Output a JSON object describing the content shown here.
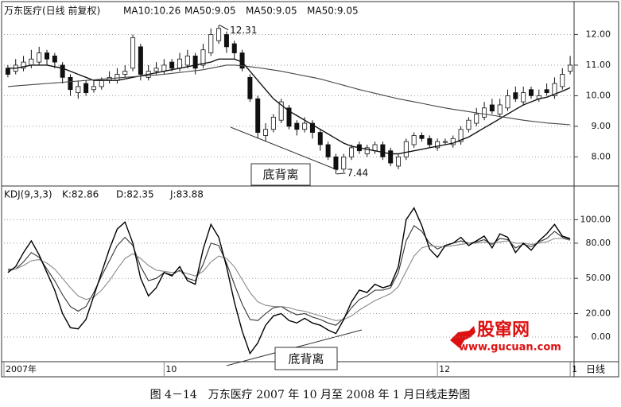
{
  "chart_data": [
    {
      "type": "candlestick",
      "title": "万东医疗(日线 前复权)",
      "open": [
        10.9,
        10.8,
        10.9,
        11.0,
        11.1,
        11.4,
        11.3,
        11.0,
        10.6,
        10.1,
        10.4,
        10.2,
        10.3,
        10.5,
        10.5,
        10.7,
        10.9,
        11.6,
        10.6,
        10.8,
        10.8,
        11.1,
        10.9,
        11.0,
        11.3,
        11.0,
        11.4,
        11.8,
        12.0,
        11.7,
        11.4,
        10.6,
        9.9,
        8.7,
        8.9,
        9.2,
        9.6,
        9.1,
        8.9,
        9.1,
        8.8,
        8.4,
        8.0,
        7.6,
        8.0,
        8.4,
        8.1,
        8.2,
        8.4,
        8.2,
        7.7,
        8.0,
        8.4,
        8.7,
        8.6,
        8.3,
        8.5,
        8.4,
        8.5,
        8.9,
        9.1,
        9.3,
        9.7,
        9.4,
        9.6,
        10.1,
        9.8,
        10.2,
        9.9,
        10.2,
        10.0,
        10.3,
        10.8
      ],
      "high": [
        11.0,
        11.2,
        11.3,
        11.5,
        11.6,
        11.5,
        11.4,
        11.1,
        10.7,
        10.5,
        10.5,
        10.5,
        10.6,
        10.8,
        10.9,
        11.0,
        12.0,
        11.7,
        11.0,
        11.1,
        11.2,
        11.2,
        11.4,
        11.5,
        11.4,
        11.7,
        12.2,
        12.31,
        12.1,
        11.8,
        11.5,
        10.7,
        10.0,
        9.1,
        9.4,
        9.9,
        9.7,
        9.2,
        9.3,
        9.2,
        8.9,
        8.5,
        8.1,
        8.1,
        8.4,
        8.5,
        8.4,
        8.5,
        8.5,
        8.3,
        8.1,
        8.6,
        8.8,
        8.8,
        8.7,
        8.6,
        8.6,
        8.7,
        9.0,
        9.3,
        9.6,
        9.8,
        9.9,
        9.9,
        10.2,
        10.3,
        10.3,
        10.3,
        10.2,
        10.4,
        10.6,
        10.9,
        11.3
      ],
      "low": [
        10.6,
        10.7,
        10.8,
        10.9,
        11.0,
        11.0,
        10.9,
        10.4,
        10.0,
        9.9,
        10.0,
        10.1,
        10.2,
        10.4,
        10.4,
        10.6,
        10.8,
        10.5,
        10.5,
        10.7,
        10.7,
        10.8,
        10.8,
        10.9,
        10.7,
        10.9,
        11.3,
        11.7,
        11.4,
        11.2,
        10.8,
        9.8,
        8.6,
        8.5,
        8.8,
        9.1,
        8.9,
        8.7,
        8.8,
        8.6,
        8.2,
        7.9,
        7.44,
        7.5,
        7.9,
        8.1,
        8.0,
        8.1,
        7.9,
        7.7,
        7.6,
        7.9,
        8.3,
        8.5,
        8.3,
        8.2,
        8.4,
        8.3,
        8.4,
        8.8,
        9.0,
        9.2,
        9.4,
        9.3,
        9.5,
        9.8,
        9.7,
        9.9,
        9.8,
        10.0,
        9.9,
        10.2,
        10.7
      ],
      "close": [
        10.7,
        11.0,
        11.1,
        11.2,
        11.4,
        11.2,
        11.1,
        10.6,
        10.2,
        10.3,
        10.1,
        10.3,
        10.5,
        10.6,
        10.7,
        10.8,
        11.9,
        10.7,
        10.8,
        10.9,
        11.0,
        10.9,
        11.2,
        11.3,
        10.9,
        11.5,
        12.0,
        12.2,
        11.6,
        11.4,
        10.9,
        9.9,
        8.8,
        8.9,
        9.3,
        9.8,
        9.0,
        8.9,
        9.1,
        8.8,
        8.4,
        8.0,
        7.6,
        8.0,
        8.3,
        8.2,
        8.3,
        8.4,
        8.0,
        7.8,
        8.0,
        8.5,
        8.7,
        8.6,
        8.4,
        8.5,
        8.5,
        8.6,
        8.9,
        9.2,
        9.4,
        9.6,
        9.5,
        9.7,
        10.0,
        9.9,
        10.1,
        10.0,
        10.0,
        10.1,
        10.4,
        10.7,
        11.0
      ],
      "up_color": "#ffffff",
      "down_color": "#111111",
      "series": [
        {
          "name": "MA10:10.26",
          "color": "#111111",
          "values": [
            10.9,
            10.9,
            10.95,
            11.0,
            11.0,
            11.0,
            10.95,
            10.9,
            10.8,
            10.7,
            10.6,
            10.5,
            10.5,
            10.5,
            10.5,
            10.55,
            10.6,
            10.65,
            10.7,
            10.75,
            10.8,
            10.85,
            10.9,
            10.95,
            11.0,
            11.05,
            11.1,
            11.2,
            11.2,
            11.2,
            11.1,
            10.8,
            10.5,
            10.2,
            9.9,
            9.7,
            9.5,
            9.35,
            9.2,
            9.05,
            8.9,
            8.75,
            8.6,
            8.45,
            8.35,
            8.3,
            8.25,
            8.2,
            8.15,
            8.1,
            8.1,
            8.15,
            8.2,
            8.25,
            8.3,
            8.35,
            8.4,
            8.45,
            8.55,
            8.65,
            8.8,
            8.95,
            9.1,
            9.25,
            9.4,
            9.55,
            9.7,
            9.8,
            9.9,
            9.95,
            10.05,
            10.15,
            10.26
          ]
        },
        {
          "name": "MA50:9.05",
          "color": "#444444",
          "values": [
            10.3,
            10.32,
            10.34,
            10.36,
            10.38,
            10.4,
            10.42,
            10.44,
            10.46,
            10.48,
            10.5,
            10.52,
            10.54,
            10.56,
            10.58,
            10.6,
            10.62,
            10.64,
            10.66,
            10.68,
            10.7,
            10.73,
            10.76,
            10.79,
            10.82,
            10.85,
            10.9,
            10.95,
            11.0,
            11.0,
            10.98,
            10.95,
            10.92,
            10.88,
            10.84,
            10.8,
            10.75,
            10.7,
            10.65,
            10.6,
            10.55,
            10.48,
            10.41,
            10.34,
            10.27,
            10.2,
            10.14,
            10.08,
            10.02,
            9.96,
            9.9,
            9.85,
            9.8,
            9.75,
            9.7,
            9.65,
            9.6,
            9.56,
            9.52,
            9.48,
            9.44,
            9.4,
            9.36,
            9.32,
            9.28,
            9.24,
            9.2,
            9.17,
            9.14,
            9.11,
            9.09,
            9.07,
            9.05
          ]
        }
      ],
      "extra_labels": [
        "MA50:9.05",
        "MA50:9.05"
      ],
      "ylim": [
        7.1,
        13.0
      ],
      "yticks": [
        {
          "value": 8,
          "label": "8.00"
        },
        {
          "value": 9,
          "label": "9.00"
        },
        {
          "value": 10,
          "label": "10.00"
        },
        {
          "value": 11,
          "label": "11.00"
        },
        {
          "value": 12,
          "label": "12.00"
        }
      ],
      "grid": true,
      "annotations": [
        "12.31",
        "7.44",
        "底背离"
      ]
    },
    {
      "type": "line",
      "title": "KDJ(9,3,3)",
      "categories": [
        "2007年",
        null,
        null,
        null,
        null,
        null,
        null,
        null,
        null,
        null,
        null,
        null,
        null,
        null,
        null,
        null,
        null,
        null,
        null,
        null,
        "10",
        null,
        null,
        null,
        null,
        null,
        null,
        null,
        null,
        null,
        null,
        null,
        null,
        null,
        null,
        null,
        null,
        null,
        null,
        null,
        null,
        null,
        null,
        null,
        null,
        null,
        null,
        null,
        null,
        null,
        null,
        null,
        null,
        null,
        null,
        "12",
        null,
        null,
        null,
        null,
        null,
        null,
        null,
        null,
        null,
        null,
        null,
        null,
        null,
        null,
        null,
        null,
        "1"
      ],
      "period_label": "日线",
      "series": [
        {
          "name": "K:82.86",
          "color": "#333333",
          "values": [
            57,
            58,
            64,
            72,
            68,
            58,
            48,
            36,
            26,
            22,
            26,
            38,
            52,
            65,
            78,
            85,
            78,
            60,
            48,
            50,
            55,
            53,
            57,
            50,
            48,
            62,
            80,
            78,
            63,
            45,
            28,
            15,
            14,
            20,
            25,
            26,
            22,
            19,
            20,
            17,
            15,
            12,
            10,
            16,
            25,
            32,
            35,
            40,
            40,
            42,
            55,
            82,
            95,
            90,
            80,
            75,
            78,
            80,
            82,
            80,
            81,
            83,
            79,
            84,
            83,
            76,
            79,
            77,
            81,
            84,
            90,
            85,
            82.86
          ]
        },
        {
          "name": "D:82.35",
          "color": "#8a8a8a",
          "values": [
            58,
            58,
            61,
            65,
            66,
            63,
            58,
            50,
            42,
            35,
            32,
            34,
            40,
            48,
            58,
            67,
            71,
            67,
            61,
            57,
            56,
            55,
            56,
            54,
            52,
            56,
            64,
            69,
            67,
            60,
            49,
            38,
            30,
            27,
            26,
            26,
            25,
            23,
            22,
            20,
            18,
            16,
            14,
            15,
            18,
            23,
            27,
            31,
            34,
            37,
            43,
            56,
            69,
            76,
            78,
            77,
            77,
            78,
            79,
            80,
            80,
            81,
            80,
            81,
            82,
            80,
            80,
            79,
            80,
            81,
            84,
            84,
            82.35
          ]
        },
        {
          "name": "J:83.88",
          "color": "#000000",
          "values": [
            55,
            60,
            72,
            82,
            70,
            55,
            40,
            20,
            8,
            7,
            15,
            35,
            55,
            75,
            92,
            98,
            80,
            50,
            35,
            42,
            55,
            52,
            60,
            48,
            45,
            75,
            96,
            85,
            60,
            30,
            5,
            -14,
            -5,
            10,
            18,
            20,
            14,
            12,
            16,
            12,
            10,
            6,
            3,
            15,
            30,
            40,
            38,
            45,
            42,
            44,
            60,
            100,
            110,
            95,
            75,
            68,
            78,
            80,
            85,
            78,
            82,
            86,
            76,
            88,
            85,
            72,
            80,
            74,
            82,
            88,
            96,
            86,
            83.88
          ]
        }
      ],
      "ylim": [
        -21,
        126
      ],
      "yticks": [
        {
          "value": 0,
          "label": "0.00"
        },
        {
          "value": 20,
          "label": "20.00"
        },
        {
          "value": 50,
          "label": "50.00"
        },
        {
          "value": 80,
          "label": "80.00"
        },
        {
          "value": 100,
          "label": "100.00"
        }
      ],
      "grid": true,
      "annotations": [
        "底背离"
      ]
    }
  ],
  "watermark": {
    "name": "股窜网",
    "url": "www.gucuan.com"
  },
  "caption": "图 4－14　万东医疗 2007 年 10 月至 2008 年 1 月日线走势图"
}
